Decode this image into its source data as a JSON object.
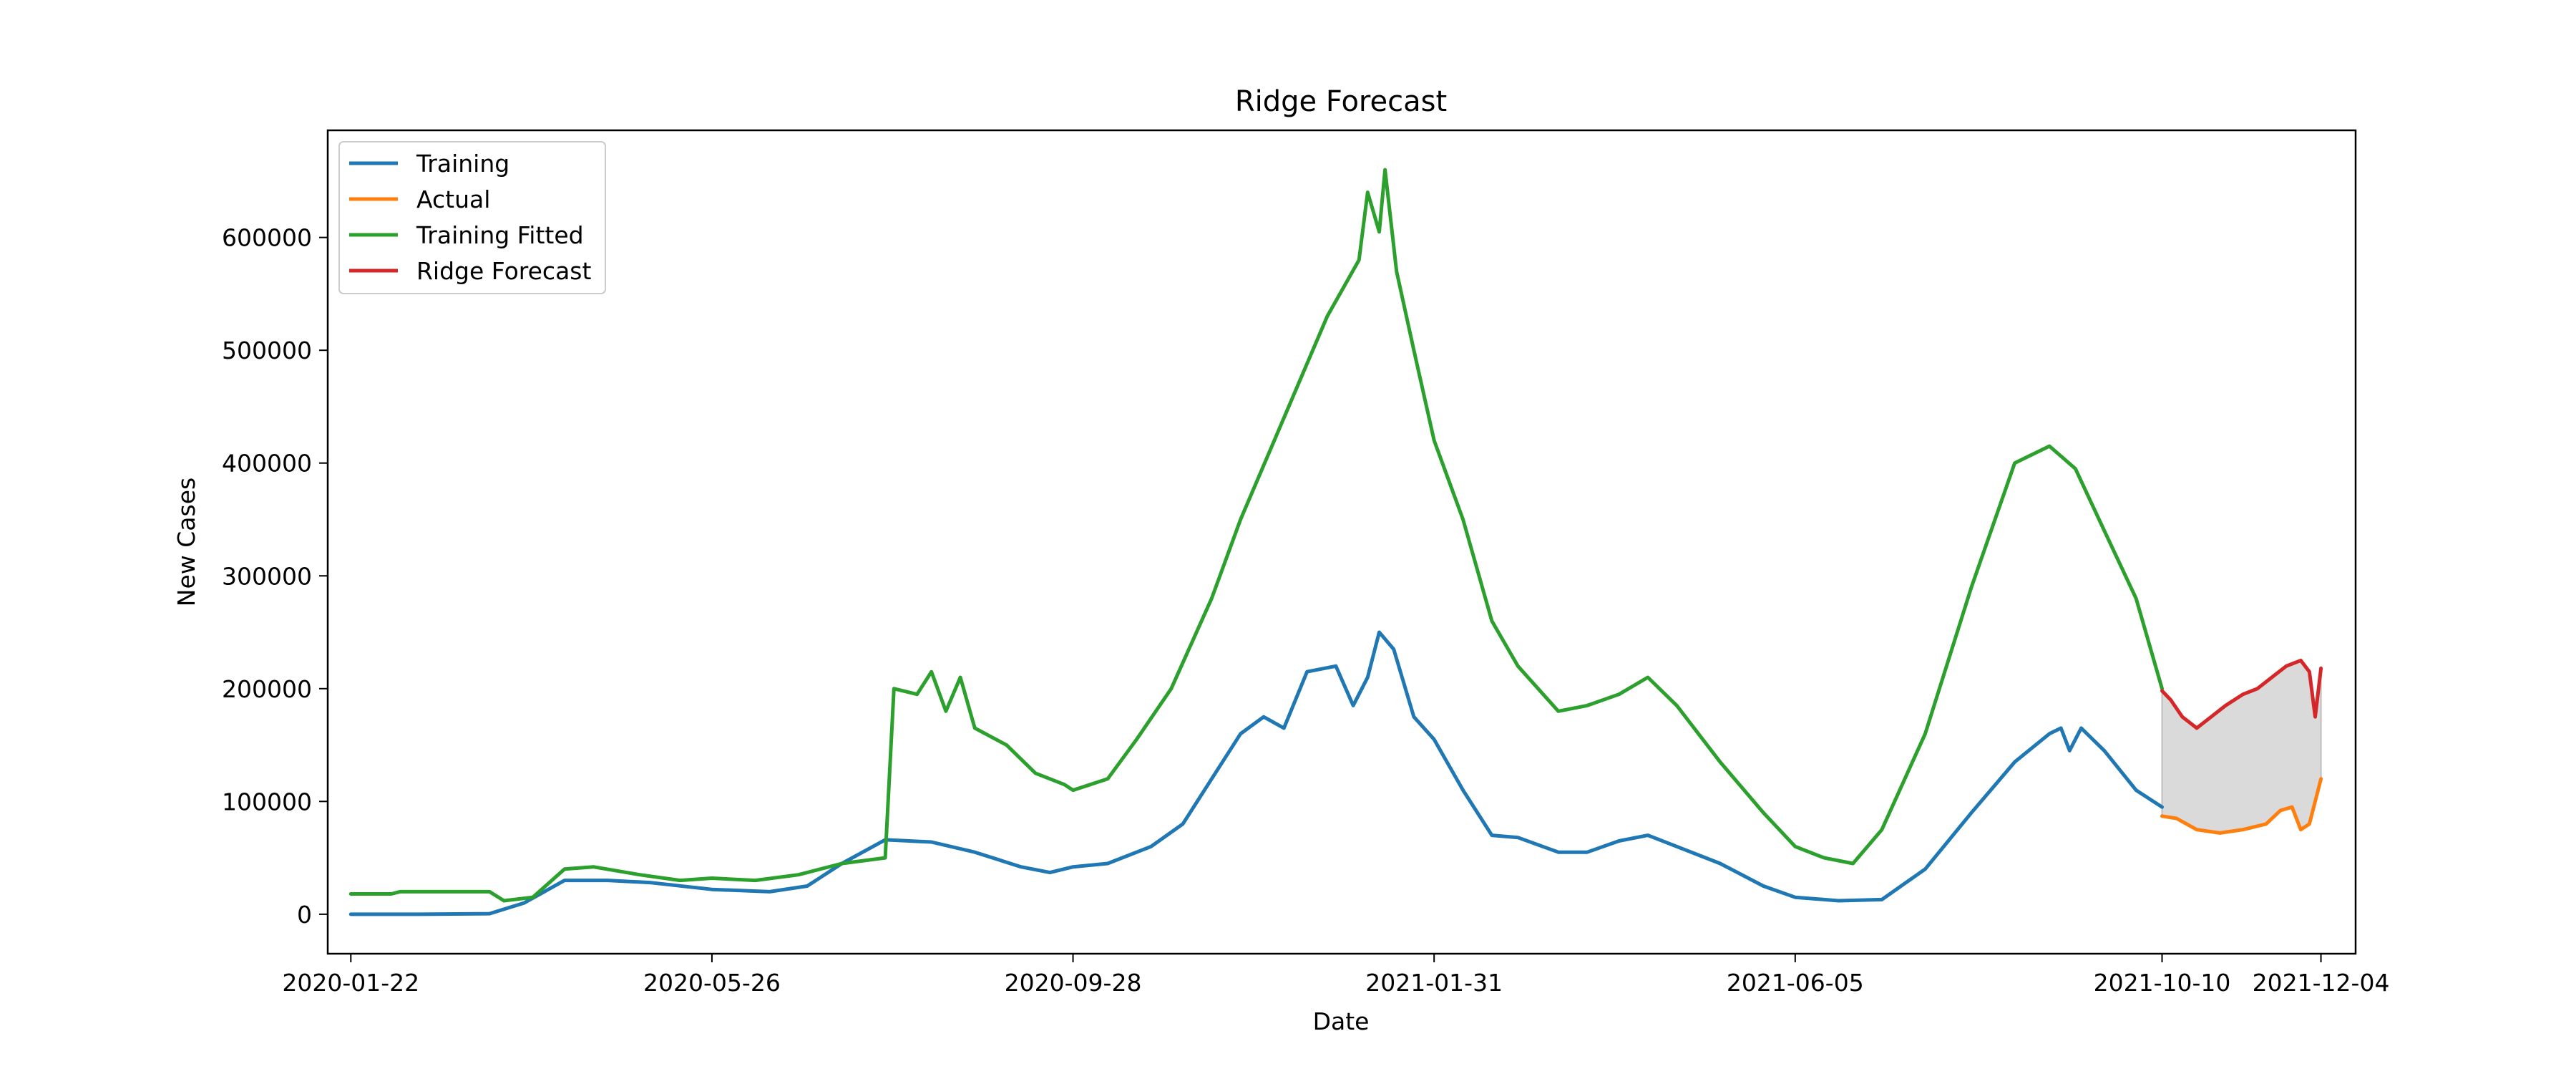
{
  "chart_data": {
    "type": "line",
    "title": "Ridge Forecast",
    "xlabel": "Date",
    "ylabel": "New Cases",
    "x_range": [
      "2020-01-22",
      "2021-12-04"
    ],
    "ylim": [
      -35000,
      695000
    ],
    "y_ticks": [
      0,
      100000,
      200000,
      300000,
      400000,
      500000,
      600000
    ],
    "y_tick_labels": [
      "0",
      "100000",
      "200000",
      "300000",
      "400000",
      "500000",
      "600000"
    ],
    "x_tick_labels": [
      "2020-01-22",
      "2020-05-26",
      "2020-09-28",
      "2021-01-31",
      "2021-06-05",
      "2021-10-10",
      "2021-12-04"
    ],
    "grid": false,
    "legend_position": "top-left",
    "forecast_band": {
      "description": "shaded interval between Actual and Ridge Forecast",
      "color": "#d3d3d3",
      "x_start": "2021-10-10",
      "x_end": "2021-12-04"
    },
    "series": [
      {
        "name": "Training",
        "color": "#1f77b4",
        "points": [
          [
            "2020-01-22",
            0
          ],
          [
            "2020-02-15",
            0
          ],
          [
            "2020-03-10",
            500
          ],
          [
            "2020-03-22",
            10000
          ],
          [
            "2020-04-05",
            30000
          ],
          [
            "2020-04-20",
            30000
          ],
          [
            "2020-05-05",
            28000
          ],
          [
            "2020-05-26",
            22000
          ],
          [
            "2020-06-15",
            20000
          ],
          [
            "2020-06-28",
            25000
          ],
          [
            "2020-07-10",
            45000
          ],
          [
            "2020-07-25",
            66000
          ],
          [
            "2020-08-10",
            64000
          ],
          [
            "2020-08-25",
            55000
          ],
          [
            "2020-09-10",
            42000
          ],
          [
            "2020-09-20",
            37000
          ],
          [
            "2020-09-28",
            42000
          ],
          [
            "2020-10-10",
            45000
          ],
          [
            "2020-10-25",
            60000
          ],
          [
            "2020-11-05",
            80000
          ],
          [
            "2020-11-15",
            120000
          ],
          [
            "2020-11-25",
            160000
          ],
          [
            "2020-12-03",
            175000
          ],
          [
            "2020-12-10",
            165000
          ],
          [
            "2020-12-18",
            215000
          ],
          [
            "2020-12-28",
            220000
          ],
          [
            "2021-01-03",
            185000
          ],
          [
            "2021-01-08",
            210000
          ],
          [
            "2021-01-12",
            250000
          ],
          [
            "2021-01-17",
            235000
          ],
          [
            "2021-01-24",
            175000
          ],
          [
            "2021-01-31",
            155000
          ],
          [
            "2021-02-10",
            110000
          ],
          [
            "2021-02-20",
            70000
          ],
          [
            "2021-03-01",
            68000
          ],
          [
            "2021-03-15",
            55000
          ],
          [
            "2021-03-25",
            55000
          ],
          [
            "2021-04-05",
            65000
          ],
          [
            "2021-04-15",
            70000
          ],
          [
            "2021-04-25",
            60000
          ],
          [
            "2021-05-10",
            45000
          ],
          [
            "2021-05-25",
            25000
          ],
          [
            "2021-06-05",
            15000
          ],
          [
            "2021-06-20",
            12000
          ],
          [
            "2021-07-05",
            13000
          ],
          [
            "2021-07-20",
            40000
          ],
          [
            "2021-08-05",
            90000
          ],
          [
            "2021-08-20",
            135000
          ],
          [
            "2021-09-01",
            160000
          ],
          [
            "2021-09-05",
            165000
          ],
          [
            "2021-09-08",
            145000
          ],
          [
            "2021-09-12",
            165000
          ],
          [
            "2021-09-20",
            145000
          ],
          [
            "2021-10-01",
            110000
          ],
          [
            "2021-10-10",
            95000
          ]
        ]
      },
      {
        "name": "Actual",
        "color": "#ff7f0e",
        "points": [
          [
            "2021-10-10",
            87000
          ],
          [
            "2021-10-15",
            85000
          ],
          [
            "2021-10-22",
            75000
          ],
          [
            "2021-10-30",
            72000
          ],
          [
            "2021-11-07",
            75000
          ],
          [
            "2021-11-15",
            80000
          ],
          [
            "2021-11-20",
            92000
          ],
          [
            "2021-11-24",
            95000
          ],
          [
            "2021-11-27",
            75000
          ],
          [
            "2021-11-30",
            80000
          ],
          [
            "2021-12-02",
            100000
          ],
          [
            "2021-12-04",
            120000
          ]
        ]
      },
      {
        "name": "Training Fitted",
        "color": "#2ca02c",
        "points": [
          [
            "2020-01-22",
            18000
          ],
          [
            "2020-02-05",
            18000
          ],
          [
            "2020-02-08",
            20000
          ],
          [
            "2020-03-10",
            20000
          ],
          [
            "2020-03-15",
            12000
          ],
          [
            "2020-03-25",
            15000
          ],
          [
            "2020-04-05",
            40000
          ],
          [
            "2020-04-15",
            42000
          ],
          [
            "2020-05-01",
            35000
          ],
          [
            "2020-05-15",
            30000
          ],
          [
            "2020-05-26",
            32000
          ],
          [
            "2020-06-10",
            30000
          ],
          [
            "2020-06-25",
            35000
          ],
          [
            "2020-07-10",
            45000
          ],
          [
            "2020-07-25",
            50000
          ],
          [
            "2020-07-28",
            200000
          ],
          [
            "2020-08-05",
            195000
          ],
          [
            "2020-08-10",
            215000
          ],
          [
            "2020-08-15",
            180000
          ],
          [
            "2020-08-20",
            210000
          ],
          [
            "2020-08-25",
            165000
          ],
          [
            "2020-09-05",
            150000
          ],
          [
            "2020-09-15",
            125000
          ],
          [
            "2020-09-25",
            115000
          ],
          [
            "2020-09-28",
            110000
          ],
          [
            "2020-10-10",
            120000
          ],
          [
            "2020-10-20",
            155000
          ],
          [
            "2020-11-01",
            200000
          ],
          [
            "2020-11-15",
            280000
          ],
          [
            "2020-11-25",
            350000
          ],
          [
            "2020-12-05",
            410000
          ],
          [
            "2020-12-15",
            470000
          ],
          [
            "2020-12-25",
            530000
          ],
          [
            "2021-01-05",
            580000
          ],
          [
            "2021-01-08",
            640000
          ],
          [
            "2021-01-12",
            605000
          ],
          [
            "2021-01-14",
            660000
          ],
          [
            "2021-01-18",
            570000
          ],
          [
            "2021-01-24",
            500000
          ],
          [
            "2021-01-31",
            420000
          ],
          [
            "2021-02-10",
            350000
          ],
          [
            "2021-02-20",
            260000
          ],
          [
            "2021-03-01",
            220000
          ],
          [
            "2021-03-15",
            180000
          ],
          [
            "2021-03-25",
            185000
          ],
          [
            "2021-04-05",
            195000
          ],
          [
            "2021-04-15",
            210000
          ],
          [
            "2021-04-25",
            185000
          ],
          [
            "2021-05-10",
            135000
          ],
          [
            "2021-05-25",
            90000
          ],
          [
            "2021-06-05",
            60000
          ],
          [
            "2021-06-15",
            50000
          ],
          [
            "2021-06-25",
            45000
          ],
          [
            "2021-07-05",
            75000
          ],
          [
            "2021-07-20",
            160000
          ],
          [
            "2021-08-05",
            290000
          ],
          [
            "2021-08-20",
            400000
          ],
          [
            "2021-09-01",
            415000
          ],
          [
            "2021-09-10",
            395000
          ],
          [
            "2021-09-20",
            340000
          ],
          [
            "2021-10-01",
            280000
          ],
          [
            "2021-10-10",
            200000
          ]
        ]
      },
      {
        "name": "Ridge Forecast",
        "color": "#d62728",
        "points": [
          [
            "2021-10-10",
            198000
          ],
          [
            "2021-10-13",
            190000
          ],
          [
            "2021-10-17",
            175000
          ],
          [
            "2021-10-22",
            165000
          ],
          [
            "2021-10-27",
            175000
          ],
          [
            "2021-11-01",
            185000
          ],
          [
            "2021-11-07",
            195000
          ],
          [
            "2021-11-12",
            200000
          ],
          [
            "2021-11-17",
            210000
          ],
          [
            "2021-11-22",
            220000
          ],
          [
            "2021-11-27",
            225000
          ],
          [
            "2021-11-30",
            215000
          ],
          [
            "2021-12-02",
            175000
          ],
          [
            "2021-12-04",
            218000
          ]
        ]
      }
    ]
  }
}
